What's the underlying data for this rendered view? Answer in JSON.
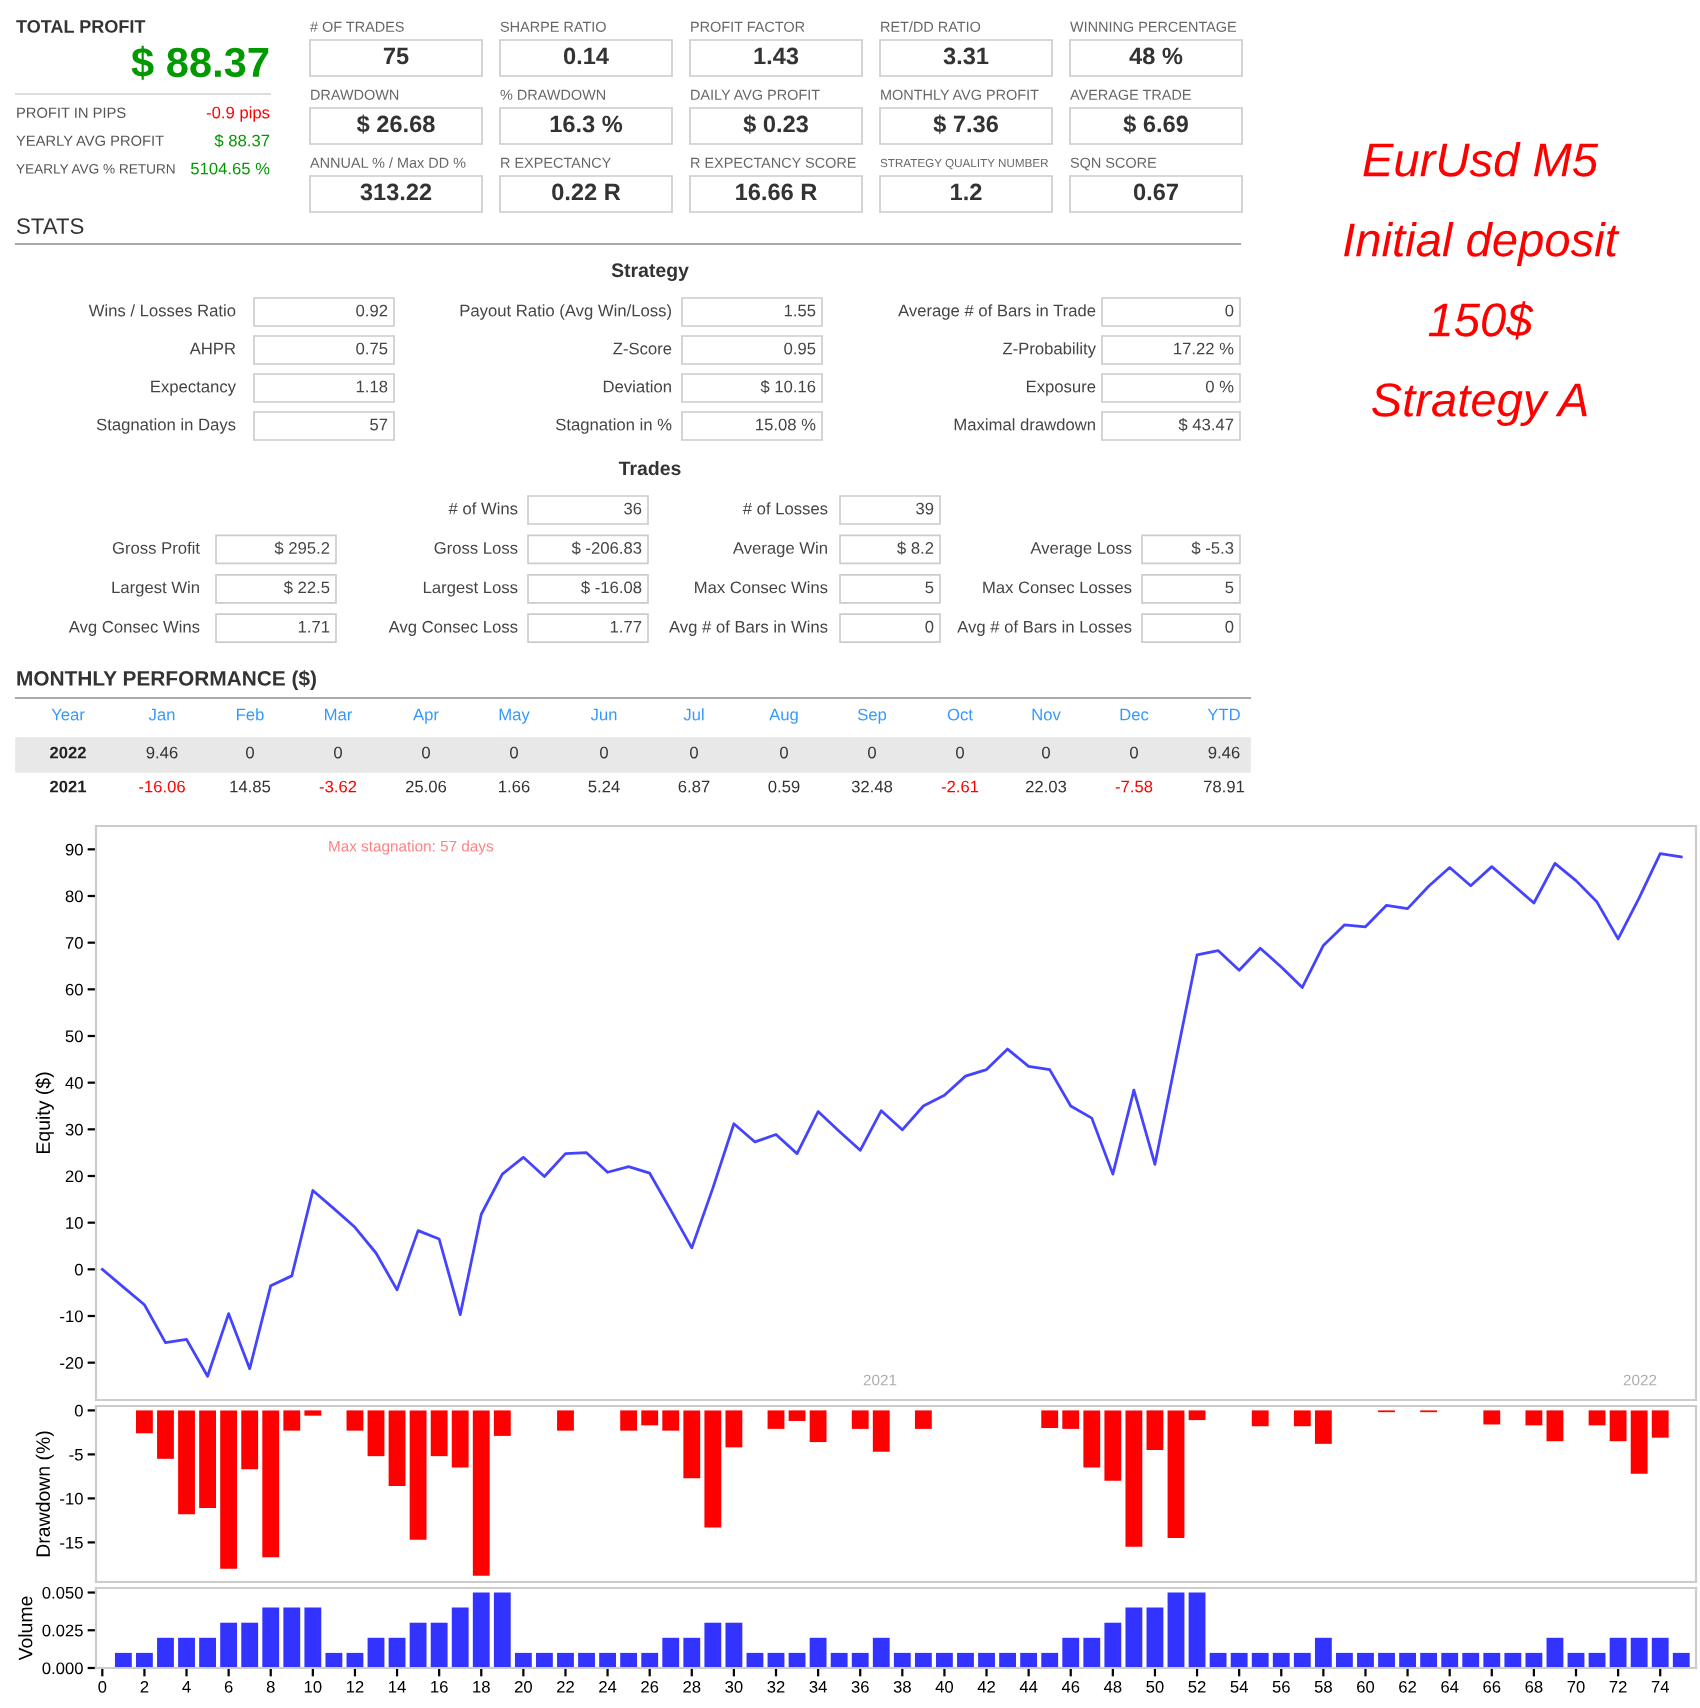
{
  "chart_data": [
    {
      "type": "other",
      "title": "TOTAL PROFIT",
      "annotations": [
        "$ 88.37",
        "PROFIT IN PIPS",
        "-0.9 pips",
        "YEARLY AVG PROFIT",
        "$ 88.37",
        "YEARLY AVG % RETURN",
        "5104.65 %"
      ],
      "colors": [
        "#009900",
        "#555555",
        "#ff0000",
        "#555555",
        "#009900",
        "#555555",
        "#009900"
      ]
    },
    {
      "type": "other",
      "annotations": [
        "# OF TRADES",
        "75",
        "SHARPE RATIO",
        "0.14",
        "PROFIT FACTOR",
        "1.43",
        "RET/DD RATIO",
        "3.31",
        "WINNING PERCENTAGE",
        "48 %",
        "DRAWDOWN",
        "$ 26.68",
        "% DRAWDOWN",
        "16.3 %",
        "DAILY AVG PROFIT",
        "$ 0.23",
        "MONTHLY AVG PROFIT",
        "$ 7.36",
        "AVERAGE TRADE",
        "$ 6.69",
        "ANNUAL % / Max DD %",
        "313.22",
        "R EXPECTANCY",
        "0.22 R",
        "R EXPECTANCY SCORE",
        "16.66 R",
        "STRATEGY QUALITY NUMBER",
        "1.2",
        "SQN SCORE",
        "0.67"
      ]
    },
    {
      "type": "other",
      "title": "STATS",
      "subtitle": "Strategy",
      "annotations": [
        "Wins / Losses Ratio",
        "0.92",
        "Payout Ratio (Avg Win/Loss)",
        "1.55",
        "Average # of Bars in Trade",
        "0",
        "AHPR",
        "0.75",
        "Z-Score",
        "0.95",
        "Z-Probability",
        "17.22 %",
        "Expectancy",
        "1.18",
        "Deviation",
        "$ 10.16",
        "Exposure",
        "0 %",
        "Stagnation in Days",
        "57",
        "Stagnation in %",
        "15.08 %",
        "Maximal drawdown",
        "$ 43.47"
      ]
    },
    {
      "type": "other",
      "subtitle": "Trades",
      "annotations": [
        "# of Wins",
        "36",
        "# of Losses",
        "39",
        "Gross Profit",
        "$ 295.2",
        "Gross Loss",
        "$ -206.83",
        "Average Win",
        "$ 8.2",
        "Average Loss",
        "$ -5.3",
        "Largest Win",
        "$ 22.5",
        "Largest Loss",
        "$ -16.08",
        "Max Consec Wins",
        "5",
        "Max Consec Losses",
        "5",
        "Avg Consec Wins",
        "1.71",
        "Avg Consec Loss",
        "1.77",
        "Avg # of Bars in Wins",
        "0",
        "Avg # of Bars in Losses",
        "0"
      ]
    },
    {
      "type": "other",
      "title": "MONTHLY PERFORMANCE ($)",
      "annotations": [
        "Year",
        "Jan",
        "Feb",
        "Mar",
        "Apr",
        "May",
        "Jun",
        "Jul",
        "Aug",
        "Sep",
        "Oct",
        "Nov",
        "Dec",
        "YTD",
        "2022",
        "9.46",
        "0",
        "0",
        "0",
        "0",
        "0",
        "0",
        "0",
        "0",
        "0",
        "0",
        "0",
        "9.46",
        "2021",
        "-16.06",
        "14.85",
        "-3.62",
        "25.06",
        "1.66",
        "5.24",
        "6.87",
        "0.59",
        "32.48",
        "-2.61",
        "22.03",
        "-7.58",
        "78.91"
      ],
      "colors": [
        "#3399ff",
        "#3399ff",
        "#3399ff",
        "#3399ff",
        "#3399ff",
        "#3399ff",
        "#3399ff",
        "#3399ff",
        "#3399ff",
        "#3399ff",
        "#3399ff",
        "#3399ff",
        "#3399ff",
        "#3399ff",
        "#222222",
        "#333333",
        "#333333",
        "#333333",
        "#333333",
        "#333333",
        "#333333",
        "#333333",
        "#333333",
        "#333333",
        "#333333",
        "#333333",
        "#333333",
        "#333333",
        "#222222",
        "#ff0000",
        "#333333",
        "#ff0000",
        "#333333",
        "#333333",
        "#333333",
        "#333333",
        "#333333",
        "#333333",
        "#ff0000",
        "#333333",
        "#ff0000",
        "#333333"
      ]
    },
    {
      "type": "other",
      "annotations": [
        "EurUsd M5",
        "Initial deposit",
        "150$",
        "Strategy A"
      ],
      "colors": [
        "#ff0000",
        "#ff0000",
        "#ff0000",
        "#ff0000"
      ]
    },
    {
      "type": "line",
      "ylabel": "Equity ($)",
      "annotations": [
        "Max stagnation: 57 days",
        "2021",
        "2022"
      ],
      "tick_labels": "y",
      "x": [
        0,
        1,
        2,
        3,
        4,
        5,
        6,
        7,
        8,
        9,
        10,
        11,
        12,
        13,
        14,
        15,
        16,
        17,
        18,
        19,
        20,
        21,
        22,
        23,
        24,
        25,
        26,
        27,
        28,
        29,
        30,
        31,
        32,
        33,
        34,
        35,
        36,
        37,
        38,
        39,
        40,
        41,
        42,
        43,
        44,
        45,
        46,
        47,
        48,
        49,
        50,
        51,
        52,
        53,
        54,
        55,
        56,
        57,
        58,
        59,
        60,
        61,
        62,
        63,
        64,
        65,
        66,
        67,
        68,
        69,
        70,
        71,
        72,
        73,
        74,
        75
      ],
      "values": [
        0,
        -3.8,
        -7.6,
        -15.7,
        -15,
        -22.9,
        -9.5,
        -21.3,
        -3.5,
        -1.4,
        16.9,
        13,
        9,
        3.5,
        -4.4,
        8.3,
        6.5,
        -9.7,
        11.8,
        20.4,
        24,
        19.9,
        24.8,
        25,
        20.8,
        22,
        20.6,
        12.7,
        4.6,
        17.4,
        31.2,
        27.3,
        28.9,
        24.8,
        33.8,
        29.6,
        25.5,
        34,
        29.9,
        35,
        37.3,
        41.4,
        42.8,
        47.2,
        43.5,
        42.8,
        35,
        32.4,
        20.4,
        38.4,
        22.5,
        45,
        67.4,
        68.3,
        64.1,
        68.8,
        64.8,
        60.4,
        69.4,
        73.8,
        73.4,
        78,
        77.3,
        82.1,
        86.1,
        82.2,
        86.3,
        82.4,
        78.5,
        87,
        83.3,
        78.7,
        70.8,
        79.6,
        89.1,
        88.4
      ],
      "color": "#4444ff",
      "xlim": [
        -0.3,
        75.7
      ],
      "ylim": [
        -28,
        95
      ],
      "yticks": [
        -20,
        -10,
        0,
        10,
        20,
        30,
        40,
        50,
        60,
        70,
        80,
        90
      ]
    },
    {
      "type": "bar",
      "ylabel": "Drawdown (%)",
      "tick_labels": "y",
      "color": "#ff0000",
      "x": [
        1,
        2,
        3,
        4,
        5,
        6,
        7,
        8,
        9,
        10,
        11,
        12,
        13,
        14,
        15,
        16,
        17,
        18,
        19,
        20,
        21,
        22,
        23,
        24,
        25,
        26,
        27,
        28,
        29,
        30,
        31,
        32,
        33,
        34,
        35,
        36,
        37,
        38,
        39,
        40,
        41,
        42,
        43,
        44,
        45,
        46,
        47,
        48,
        49,
        50,
        51,
        52,
        53,
        54,
        55,
        56,
        57,
        58,
        59,
        60,
        61,
        62,
        63,
        64,
        65,
        66,
        67,
        68,
        69,
        70,
        71,
        72,
        73,
        74,
        75
      ],
      "values": [
        0,
        -2.6,
        -5.5,
        -11.8,
        -11.1,
        -18,
        -6.7,
        -16.7,
        -2.3,
        -0.6,
        0,
        -2.3,
        -5.2,
        -8.6,
        -14.7,
        -5.2,
        -6.5,
        -18.8,
        -2.9,
        0,
        0,
        -2.3,
        0,
        0,
        -2.3,
        -1.7,
        -2.3,
        -7.7,
        -13.3,
        -4.2,
        0,
        -2.1,
        -1.2,
        -3.6,
        0,
        -2.1,
        -4.7,
        0,
        -2.1,
        0,
        0,
        0,
        0,
        0,
        -2,
        -2.1,
        -6.5,
        -8,
        -15.5,
        -4.5,
        -14.5,
        -1.1,
        0,
        0,
        -1.8,
        0,
        -1.8,
        -3.8,
        0,
        0,
        -0.2,
        0,
        -0.2,
        0,
        0,
        -1.6,
        0,
        -1.7,
        -3.5,
        0,
        -1.7,
        -3.5,
        -7.2,
        -3.1,
        0
      ],
      "xlim": [
        -0.3,
        75.7
      ],
      "ylim": [
        -19.5,
        0.5
      ],
      "yticks": [
        -15,
        -10,
        -5,
        0
      ]
    },
    {
      "type": "bar",
      "ylabel": "Volume",
      "color": "#3333ff",
      "x": [
        1,
        2,
        3,
        4,
        5,
        6,
        7,
        8,
        9,
        10,
        11,
        12,
        13,
        14,
        15,
        16,
        17,
        18,
        19,
        20,
        21,
        22,
        23,
        24,
        25,
        26,
        27,
        28,
        29,
        30,
        31,
        32,
        33,
        34,
        35,
        36,
        37,
        38,
        39,
        40,
        41,
        42,
        43,
        44,
        45,
        46,
        47,
        48,
        49,
        50,
        51,
        52,
        53,
        54,
        55,
        56,
        57,
        58,
        59,
        60,
        61,
        62,
        63,
        64,
        65,
        66,
        67,
        68,
        69,
        70,
        71,
        72,
        73,
        74,
        75
      ],
      "values": [
        0.01,
        0.01,
        0.02,
        0.02,
        0.02,
        0.03,
        0.03,
        0.04,
        0.04,
        0.04,
        0.01,
        0.01,
        0.02,
        0.02,
        0.03,
        0.03,
        0.04,
        0.05,
        0.05,
        0.01,
        0.01,
        0.01,
        0.01,
        0.01,
        0.01,
        0.01,
        0.02,
        0.02,
        0.03,
        0.03,
        0.01,
        0.01,
        0.01,
        0.02,
        0.01,
        0.01,
        0.02,
        0.01,
        0.01,
        0.01,
        0.01,
        0.01,
        0.01,
        0.01,
        0.01,
        0.02,
        0.02,
        0.03,
        0.04,
        0.04,
        0.05,
        0.05,
        0.01,
        0.01,
        0.01,
        0.01,
        0.01,
        0.02,
        0.01,
        0.01,
        0.01,
        0.01,
        0.01,
        0.01,
        0.01,
        0.01,
        0.01,
        0.01,
        0.02,
        0.01,
        0.01,
        0.02,
        0.02,
        0.02,
        0.01
      ],
      "xlim": [
        -0.3,
        75.7
      ],
      "xticks": [
        0,
        2,
        4,
        6,
        8,
        10,
        12,
        14,
        16,
        18,
        20,
        22,
        24,
        26,
        28,
        30,
        32,
        34,
        36,
        38,
        40,
        42,
        44,
        46,
        48,
        50,
        52,
        54,
        56,
        58,
        60,
        62,
        64,
        66,
        68,
        70,
        72,
        74
      ],
      "ylim": [
        0,
        0.053
      ],
      "yticks": [
        {
          "value": 0,
          "label": "0.000"
        },
        {
          "value": 0.025,
          "label": "0.025"
        },
        {
          "value": 0.05,
          "label": "0.050"
        }
      ]
    }
  ]
}
